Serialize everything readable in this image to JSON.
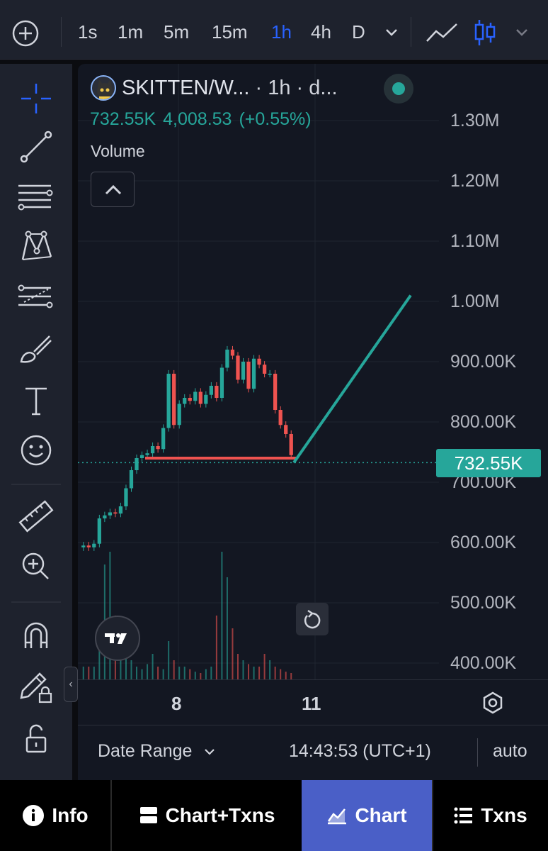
{
  "toolbar": {
    "timeframes": [
      "1s",
      "1m",
      "5m",
      "15m",
      "1h",
      "4h",
      "D"
    ],
    "active_timeframe": "1h",
    "icons": [
      "add-icon",
      "chevron-down-icon",
      "line-chart-icon",
      "candles-icon",
      "chevron-down-icon"
    ]
  },
  "left_tools": [
    "crosshair-icon",
    "trend-line-icon",
    "fib-icon",
    "pattern-icon",
    "projection-icon",
    "brush-icon",
    "text-icon",
    "emoji-icon",
    "ruler-icon",
    "zoom-in-icon",
    "magnet-icon",
    "pencil-lock-icon",
    "unlock-icon"
  ],
  "legend": {
    "symbol": "SKITTEN/W...",
    "suffix": " · 1h · d...",
    "last": "732.55K",
    "change": "4,008.53",
    "change_pct": "(+0.55%)",
    "volume_label": "Volume"
  },
  "price_axis": {
    "labels": [
      "1.30M",
      "1.20M",
      "1.10M",
      "1.00M",
      "900.00K",
      "800.00K",
      "700.00K",
      "600.00K",
      "500.00K",
      "400.00K"
    ],
    "last_price_label": "732.55K"
  },
  "time_axis": {
    "labels": [
      "8",
      "11"
    ]
  },
  "bottom_bar": {
    "date_range": "Date Range",
    "clock": "14:43:53 (UTC+1)",
    "scale_mode": "auto"
  },
  "nav": {
    "items": [
      {
        "label": "Info",
        "icon": "info-icon"
      },
      {
        "label": "Chart+Txns",
        "icon": "split-view-icon"
      },
      {
        "label": "Chart",
        "icon": "chart-icon"
      },
      {
        "label": "Txns",
        "icon": "list-icon"
      }
    ],
    "active": "Chart"
  },
  "colors": {
    "up": "#26a69a",
    "down": "#ef5350",
    "accent": "#2962ff",
    "nav_active": "#4a5fc7",
    "drawing_line": "#26a69a",
    "support_line": "#ef5350"
  },
  "chart_data": {
    "type": "candlestick",
    "timeframe": "1h",
    "x_ticks": [
      "8",
      "11"
    ],
    "ylim": [
      350000,
      1350000
    ],
    "y_ticks": [
      400000,
      500000,
      600000,
      700000,
      800000,
      900000,
      1000000,
      1100000,
      1200000,
      1300000
    ],
    "last_price": 732550,
    "price_path": [
      595000,
      592000,
      598000,
      640000,
      645000,
      650000,
      648000,
      660000,
      690000,
      720000,
      740000,
      745000,
      748000,
      760000,
      755000,
      790000,
      880000,
      795000,
      830000,
      840000,
      835000,
      850000,
      830000,
      845000,
      860000,
      840000,
      890000,
      920000,
      910000,
      870000,
      900000,
      855000,
      905000,
      895000,
      880000,
      880000,
      820000,
      795000,
      780000,
      745000
    ],
    "volume_spikes_relative": [
      0.1,
      0.1,
      0.1,
      0.3,
      0.9,
      1.0,
      0.5,
      0.4,
      0.25,
      0.15,
      0.1,
      0.08,
      0.12,
      0.2,
      0.1,
      0.08,
      0.3,
      0.15,
      0.1,
      0.1,
      0.08,
      0.06,
      0.05,
      0.08,
      0.1,
      0.5,
      1.0,
      0.8,
      0.4,
      0.2,
      0.15,
      0.12,
      0.1,
      0.1,
      0.2,
      0.15,
      0.1,
      0.08,
      0.06,
      0.05
    ],
    "annotations": [
      {
        "kind": "horizontal-segment",
        "color": "#ef5350",
        "price": 740000
      },
      {
        "kind": "trend-line",
        "color": "#26a69a",
        "from_price": 732550,
        "to_price": 1010000
      }
    ]
  }
}
